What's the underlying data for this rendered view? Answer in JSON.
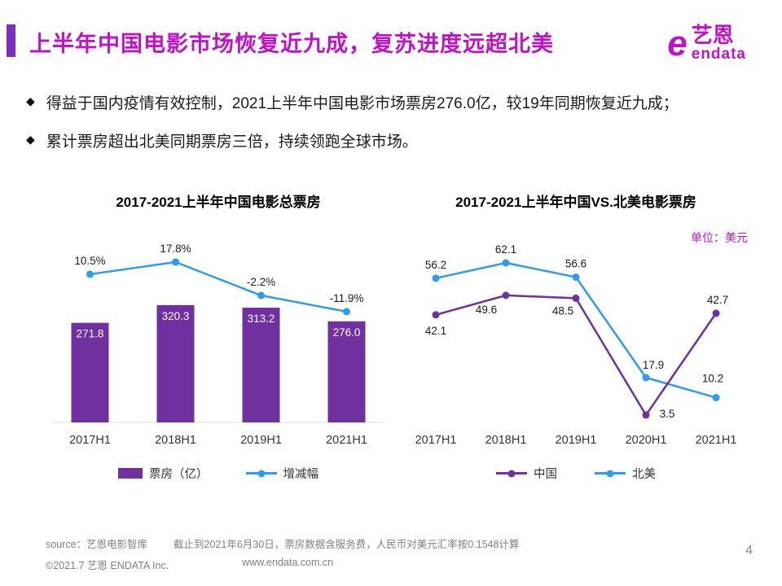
{
  "header": {
    "title": "上半年中国电影市场恢复近九成，复苏进度远超北美",
    "title_color": "#c013c9",
    "accent_color": "#7d2ebf",
    "logo": {
      "icon_glyph": "e",
      "cn": "艺恩",
      "en": "endata",
      "color": "#c013c9"
    }
  },
  "bullet_glyph": "◆",
  "bullets": [
    "得益于国内疫情有效控制，2021上半年中国电影市场票房276.0亿，较19年同期恢复近九成；",
    "累计票房超出北美同期票房三倍，持续领跑全球市场。"
  ],
  "chart_data": [
    {
      "type": "bar",
      "title": "2017-2021上半年中国电影总票房",
      "categories": [
        "2017H1",
        "2018H1",
        "2019H1",
        "2021H1"
      ],
      "series": [
        {
          "name": "票房（亿）",
          "type": "bar",
          "color": "#7030a0",
          "values": [
            271.8,
            320.3,
            313.2,
            276.0
          ]
        },
        {
          "name": "增减幅",
          "type": "line",
          "color": "#2f9bec",
          "unit": "%",
          "values": [
            10.5,
            17.8,
            -2.2,
            -11.9
          ]
        }
      ],
      "legend_position": "bottom",
      "grid": false,
      "ylim": [
        0,
        350
      ]
    },
    {
      "type": "line",
      "title": "2017-2021上半年中国VS.北美电影票房",
      "unit_note": "单位：美元",
      "categories": [
        "2017H1",
        "2018H1",
        "2019H1",
        "2020H1",
        "2021H1"
      ],
      "series": [
        {
          "name": "中国",
          "color": "#7030a0",
          "values": [
            42.1,
            49.6,
            48.5,
            3.5,
            42.7
          ]
        },
        {
          "name": "北美",
          "color": "#2f9bec",
          "values": [
            56.2,
            62.1,
            56.6,
            17.9,
            10.2
          ]
        }
      ],
      "legend_position": "bottom",
      "grid": false,
      "ylim": [
        0,
        70
      ]
    }
  ],
  "footer": {
    "source": "source：艺恩电影智库",
    "note": "截止到2021年6月30日，票房数据含服务费，人民币对美元汇率按0.1548计算",
    "copyright": "©2021.7 艺恩 ENDATA Inc.",
    "website": "www.endata.com.cn",
    "page_number": "4"
  }
}
